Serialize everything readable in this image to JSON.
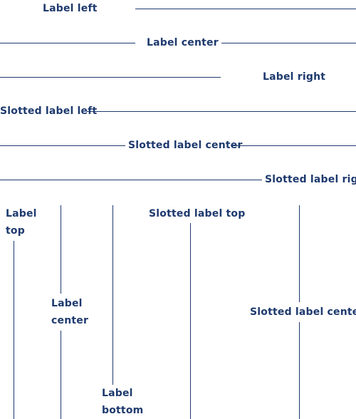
{
  "colors": {
    "line": "#1e3a6e",
    "text": "#1e3a6e",
    "background": "#ffffff"
  },
  "horizontal": {
    "label_left": "Label left",
    "label_center": "Label center",
    "label_right": "Label right",
    "slotted_left": "Slotted label left",
    "slotted_center": "Slotted label center",
    "slotted_right": "Slotted label right"
  },
  "vertical": {
    "label_top": "Label top",
    "label_center": "Label center",
    "label_bottom": "Label bottom",
    "slotted_top": "Slotted label top",
    "slotted_center": "Slotted label center"
  }
}
